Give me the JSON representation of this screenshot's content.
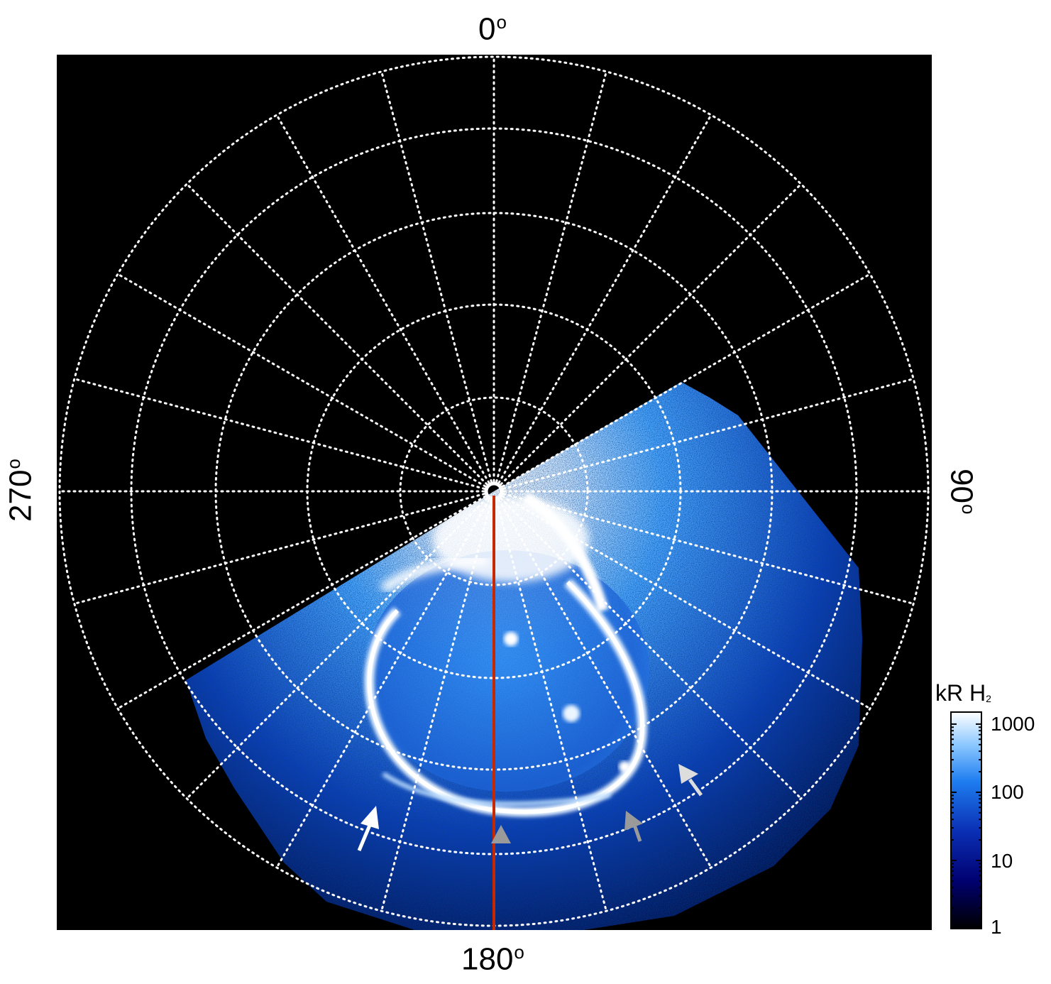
{
  "axis_labels": {
    "top": "0",
    "right": "90",
    "bottom": "180",
    "left": "270",
    "degree_symbol": "o"
  },
  "colorbar": {
    "title_main": "kR H",
    "title_sub": "2",
    "ticks": [
      "1000",
      "100",
      "10",
      "1"
    ],
    "scale": "log",
    "range": [
      1,
      1500
    ],
    "colormap": [
      "#000000",
      "#00008b",
      "#1565e0",
      "#2f9cff",
      "#bfe0ff",
      "#ffffff"
    ]
  },
  "colors": {
    "background_map": "#000000",
    "grid": "#ffffff",
    "meridian_line": "#c62800",
    "arrow_primary": "#ffffff",
    "arrow_secondary": "#9a9a9a"
  },
  "grid": {
    "style": "dotted",
    "meridians_deg_step": 15,
    "parallels_count": 5
  },
  "annotations": [
    {
      "name": "white-arrow",
      "color": "white"
    },
    {
      "name": "gray-arrowhead",
      "color": "gray"
    },
    {
      "name": "gray-arrow-1",
      "color": "gray"
    },
    {
      "name": "gray-arrow-2",
      "color": "gray"
    }
  ]
}
